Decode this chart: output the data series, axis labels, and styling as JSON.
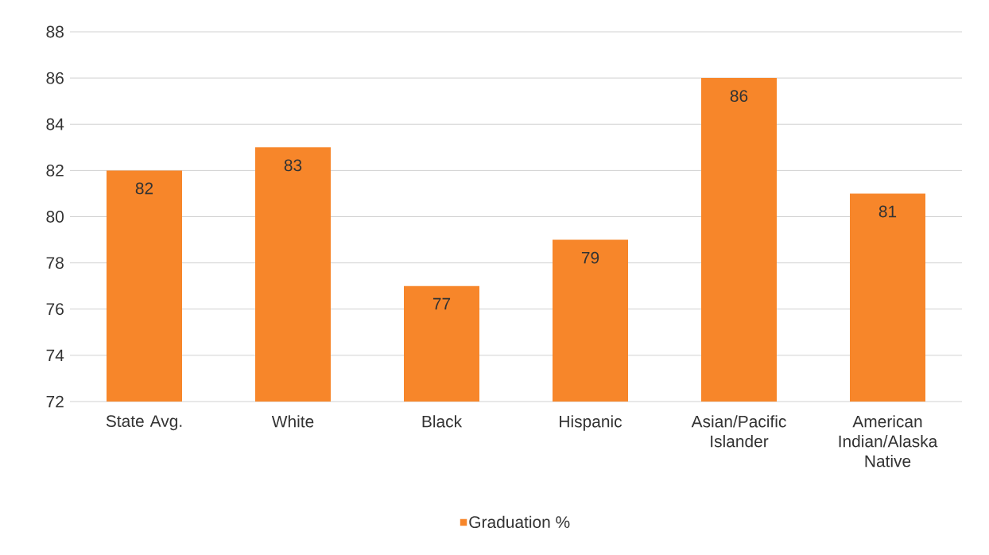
{
  "chart_data": {
    "type": "bar",
    "categories": [
      "State Avg.",
      "White",
      "Black",
      "Hispanic",
      "Asian/Pacific Islander",
      "American Indian/Alaska Native"
    ],
    "series": [
      {
        "name": "Graduation %",
        "color": "#f7862a",
        "values": [
          82,
          83,
          77,
          79,
          86,
          81
        ]
      }
    ],
    "ylim": [
      72,
      88
    ],
    "yticks": [
      72,
      74,
      76,
      78,
      80,
      82,
      84,
      86,
      88
    ],
    "grid": "y",
    "legend": "bottom",
    "data_labels": true
  }
}
